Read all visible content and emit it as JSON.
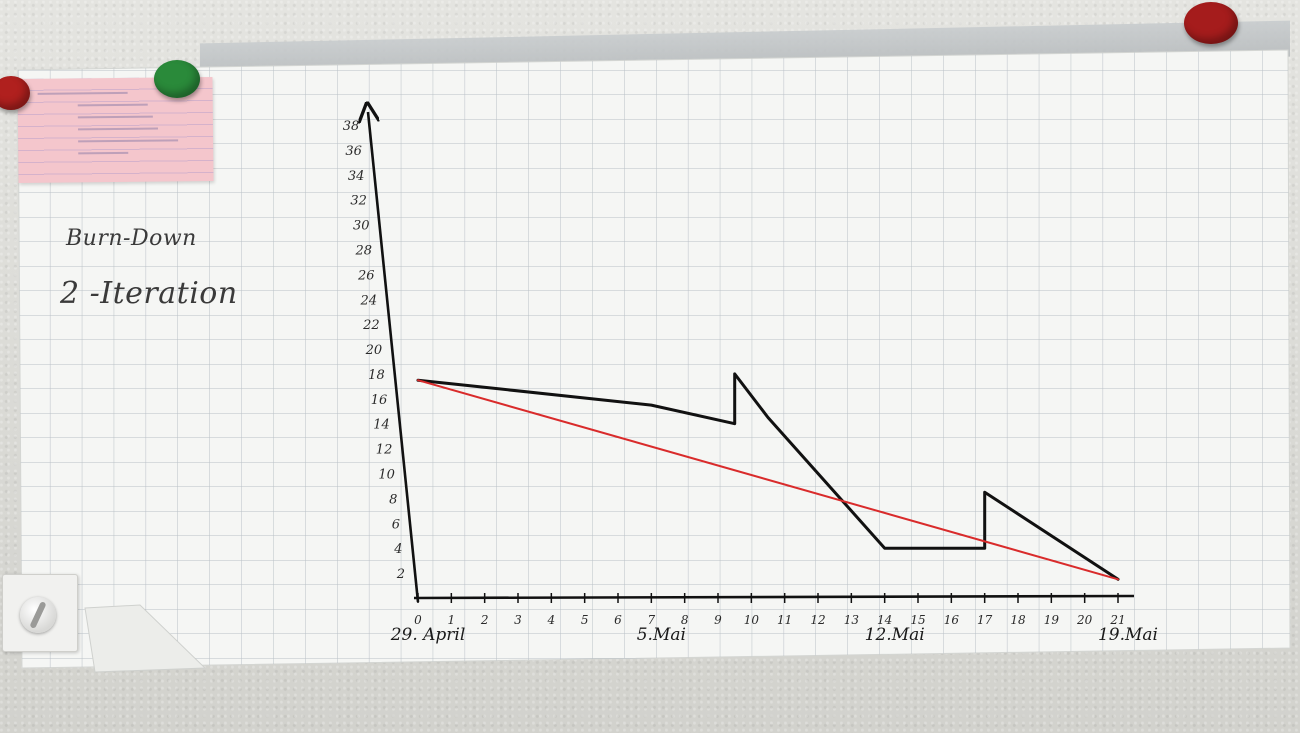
{
  "chart_data": {
    "type": "line",
    "title": "Burn-Down",
    "subtitle": "2 -Iteration",
    "xlabel": "",
    "ylabel": "",
    "xlim": [
      0,
      21
    ],
    "ylim": [
      0,
      38
    ],
    "x_ticks": [
      0,
      1,
      2,
      3,
      4,
      5,
      6,
      7,
      8,
      9,
      10,
      11,
      12,
      13,
      14,
      15,
      16,
      17,
      18,
      19,
      20,
      21
    ],
    "y_ticks": [
      2,
      4,
      6,
      8,
      10,
      12,
      14,
      16,
      18,
      20,
      22,
      24,
      26,
      28,
      30,
      32,
      34,
      36,
      38
    ],
    "date_labels": [
      {
        "x": 0,
        "label": "29. April"
      },
      {
        "x": 7,
        "label": "5.Mai"
      },
      {
        "x": 14,
        "label": "12.Mai"
      },
      {
        "x": 21,
        "label": "19.Mai"
      }
    ],
    "grid": true,
    "series": [
      {
        "color": "#111111",
        "points": [
          [
            0,
            17.5
          ],
          [
            7,
            15.5
          ],
          [
            9.5,
            14
          ],
          [
            9.5,
            18
          ],
          [
            10.5,
            14.5
          ],
          [
            12,
            10
          ],
          [
            14,
            4
          ],
          [
            17,
            4
          ],
          [
            17,
            8.5
          ],
          [
            21,
            1.5
          ]
        ]
      },
      {
        "color": "#d92b2b",
        "points": [
          [
            0,
            17.5
          ],
          [
            21,
            1.5
          ]
        ]
      }
    ]
  }
}
